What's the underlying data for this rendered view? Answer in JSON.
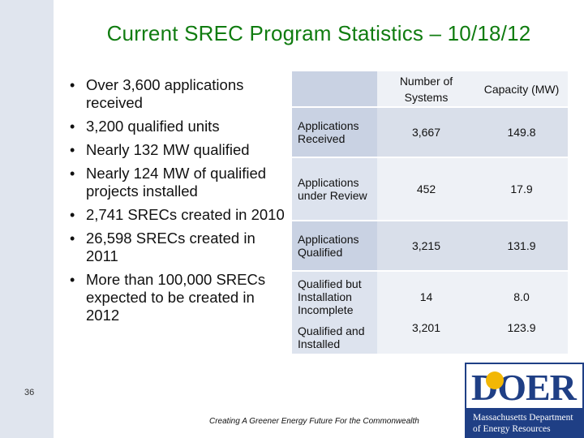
{
  "slide": {
    "title": "Current SREC Program Statistics – 10/18/12",
    "page_number": "36",
    "tagline": "Creating A Greener Energy Future For the Commonwealth"
  },
  "bullets": [
    "Over 3,600 applications received",
    "3,200 qualified units",
    "Nearly 132 MW qualified",
    "Nearly 124 MW of qualified projects installed",
    "2,741 SRECs created in 2010",
    "26,598 SRECs created in 2011",
    "More than 100,000 SRECs expected to be created in 2012"
  ],
  "table": {
    "col_systems": "Number of Systems",
    "col_capacity": "Capacity (MW)",
    "rows": [
      {
        "label": "Applications Received",
        "systems": "3,667",
        "capacity": "149.8"
      },
      {
        "label": "Applications under Review",
        "systems": "452",
        "capacity": "17.9"
      },
      {
        "label": "Applications Qualified",
        "systems": "3,215",
        "capacity": "131.9"
      },
      {
        "label": "Qualified but Installation Incomplete",
        "systems": "14",
        "capacity": "8.0"
      },
      {
        "label": "Qualified and Installed",
        "systems": "3,201",
        "capacity": "123.9"
      }
    ]
  },
  "logo": {
    "wordmark": "DOER",
    "line1": "Massachusetts Department",
    "line2": "of Energy Resources",
    "accent_color": "#1f3f85",
    "sun_color": "#f2b705"
  },
  "colors": {
    "title": "#107c10",
    "sidebar": "#e0e5ee"
  }
}
